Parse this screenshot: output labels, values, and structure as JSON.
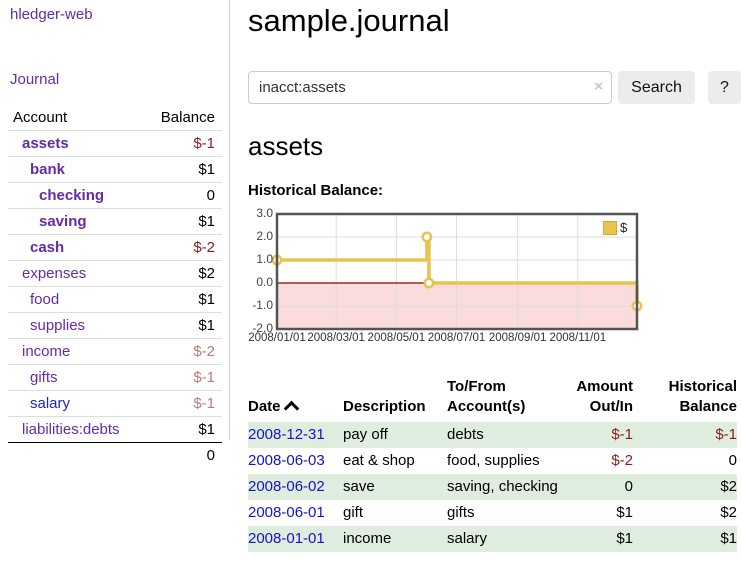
{
  "sidebar": {
    "brand": "hledger-web",
    "nav": {
      "journal": "Journal"
    },
    "table": {
      "account_header": "Account",
      "balance_header": "Balance",
      "accounts": [
        {
          "name": "assets",
          "balance": "$-1"
        },
        {
          "name": "bank",
          "balance": "$1"
        },
        {
          "name": "checking",
          "balance": "0"
        },
        {
          "name": "saving",
          "balance": "$1"
        },
        {
          "name": "cash",
          "balance": "$-2"
        },
        {
          "name": "expenses",
          "balance": "$2"
        },
        {
          "name": "food",
          "balance": "$1"
        },
        {
          "name": "supplies",
          "balance": "$1"
        },
        {
          "name": "income",
          "balance": "$-2"
        },
        {
          "name": "gifts",
          "balance": "$-1"
        },
        {
          "name": "salary",
          "balance": "$-1"
        },
        {
          "name": "liabilities:debts",
          "balance": "$1"
        }
      ],
      "total": "0"
    }
  },
  "main": {
    "title": "sample.journal",
    "search": {
      "value": "inacct:assets",
      "clear_icon": "×",
      "button": "Search",
      "help": "?"
    },
    "heading": "assets",
    "chart_label": "Historical Balance:"
  },
  "chart_data": {
    "type": "line",
    "title": "Historical Balance:",
    "step": true,
    "legend": [
      {
        "label": "$",
        "color": "#e9c34f"
      }
    ],
    "series": [
      {
        "name": "$",
        "points": [
          [
            "2008-01-01",
            1
          ],
          [
            "2008-06-01",
            2
          ],
          [
            "2008-06-03",
            0
          ],
          [
            "2008-12-31",
            -1
          ]
        ]
      }
    ],
    "x_range": [
      "2008-01-01",
      "2008-12-31"
    ],
    "ylim": [
      -2,
      3
    ],
    "y_ticks": [
      "3.0",
      "2.0",
      "1.0",
      "0.0",
      "-1.0",
      "-2.0"
    ],
    "x_ticks": [
      {
        "date": "2008-01-01",
        "label": "2008/01/01"
      },
      {
        "date": "2008-03-01",
        "label": "2008/03/01"
      },
      {
        "date": "2008-05-01",
        "label": "2008/05/01"
      },
      {
        "date": "2008-07-01",
        "label": "2008/07/01"
      },
      {
        "date": "2008-09-01",
        "label": "2008/09/01"
      },
      {
        "date": "2008-11-01",
        "label": "2008/11/01"
      }
    ],
    "grid_on": true,
    "legend_position": "top-right",
    "line_color": "#e9c34f",
    "negative_region_fill": "#fbdcdc",
    "zero_line_color": "#8b0000",
    "grid_color": "#dcdcdc",
    "border_color": "#545454"
  },
  "register": {
    "headers": {
      "date": "Date",
      "description": "Description",
      "accounts": "To/From Account(s)",
      "amount": "Amount Out/In",
      "balance": "Historical Balance"
    },
    "rows": [
      {
        "date": "2008-12-31",
        "description": "pay off",
        "accounts": "debts",
        "amount": "$-1",
        "balance": "$-1"
      },
      {
        "date": "2008-06-03",
        "description": "eat & shop",
        "accounts": "food, supplies",
        "amount": "$-2",
        "balance": "0"
      },
      {
        "date": "2008-06-02",
        "description": "save",
        "accounts": "saving, checking",
        "amount": "0",
        "balance": "$2"
      },
      {
        "date": "2008-06-01",
        "description": "gift",
        "accounts": "gifts",
        "amount": "$1",
        "balance": "$2"
      },
      {
        "date": "2008-01-01",
        "description": "income",
        "accounts": "salary",
        "amount": "$1",
        "balance": "$1"
      }
    ]
  },
  "colors": {
    "link_purple": "#632ca6",
    "link_blue": "#1414cc",
    "negative": "#8b2020",
    "negative_faint": "#bb7c7c",
    "row_stripe": "#deeddd",
    "chart_line": "#e9c34f",
    "chart_negative_fill": "#fbdcdc",
    "zero_line": "#8b0000"
  }
}
